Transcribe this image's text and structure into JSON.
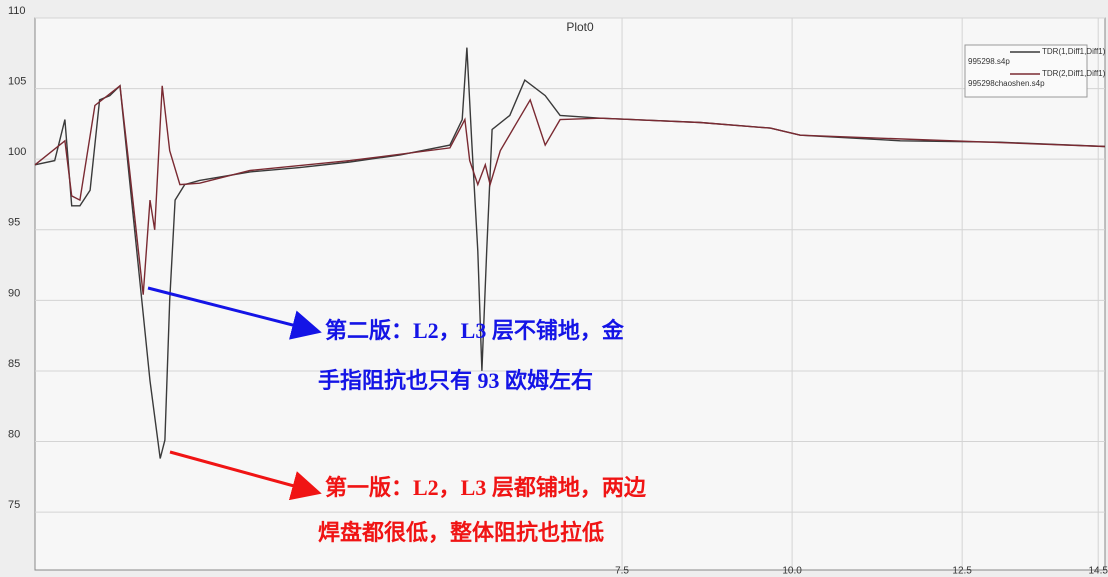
{
  "chart_data": {
    "type": "line",
    "title": "Plot0",
    "xlim": [
      -1.13,
      14.6
    ],
    "ylim": [
      70.9,
      110
    ],
    "xticks": [
      7.5,
      {
        "value": 10,
        "label": "10.0"
      },
      12.5,
      14.5
    ],
    "yticks": [
      75,
      80,
      85,
      90,
      95,
      100,
      105,
      110
    ],
    "grid": true,
    "legend": "top-right",
    "series": [
      {
        "name": "TDR(1,Diff1,Diff1)",
        "source": "995298.s4p",
        "color": "#3a3a3a",
        "x": [
          -1.13,
          -0.84,
          -0.69,
          -0.59,
          -0.47,
          -0.32,
          -0.18,
          -0.03,
          0.12,
          0.26,
          0.41,
          0.56,
          0.71,
          0.78,
          0.85,
          0.93,
          1.07,
          1.29,
          2.03,
          2.76,
          3.5,
          4.24,
          4.97,
          5.15,
          5.22,
          5.29,
          5.38,
          5.44,
          5.51,
          5.59,
          5.85,
          6.07,
          6.37,
          6.59,
          7.18,
          8.65,
          9.68,
          10.12,
          11.59,
          13.06,
          14.6
        ],
        "values": [
          99.6,
          99.9,
          102.8,
          96.7,
          96.7,
          97.8,
          104.2,
          104.5,
          105.2,
          98.5,
          91.4,
          84.3,
          78.8,
          80.1,
          90.0,
          97.1,
          98.2,
          98.5,
          99.1,
          99.4,
          99.8,
          100.3,
          101.0,
          102.8,
          107.9,
          101.3,
          93.5,
          85.0,
          93.5,
          102.1,
          103.1,
          105.6,
          104.5,
          103.1,
          102.9,
          102.6,
          102.2,
          101.7,
          101.3,
          101.2,
          100.9
        ]
      },
      {
        "name": "TDR(2,Diff1,Diff1)",
        "source": "995298chaoshen.s4p",
        "color": "#7a2a32",
        "x": [
          -1.13,
          -0.69,
          -0.59,
          -0.47,
          -0.25,
          0.12,
          0.26,
          0.46,
          0.56,
          0.63,
          0.74,
          0.85,
          1.0,
          1.29,
          2.03,
          3.5,
          4.97,
          5.19,
          5.26,
          5.38,
          5.49,
          5.56,
          5.71,
          5.93,
          6.15,
          6.37,
          6.59,
          7.18,
          8.65,
          9.68,
          10.12,
          14.6
        ],
        "values": [
          99.6,
          101.3,
          97.4,
          97.1,
          103.8,
          105.2,
          99.2,
          90.4,
          97.1,
          95.0,
          105.2,
          100.6,
          98.2,
          98.3,
          99.2,
          99.9,
          100.8,
          102.8,
          99.9,
          98.2,
          99.6,
          98.2,
          100.6,
          102.4,
          104.2,
          101.0,
          102.8,
          102.9,
          102.6,
          102.2,
          101.7,
          100.9
        ]
      }
    ],
    "annotations": [
      {
        "color": "#1414e6",
        "lines": [
          "第二版：L2，L3 层不铺地，金",
          "手指阻抗也只有 93 欧姆左右"
        ]
      },
      {
        "color": "#f01414",
        "lines": [
          "第一版：L2，L3 层都铺地，两边",
          "焊盘都很低，整体阻抗也拉低"
        ]
      }
    ]
  }
}
